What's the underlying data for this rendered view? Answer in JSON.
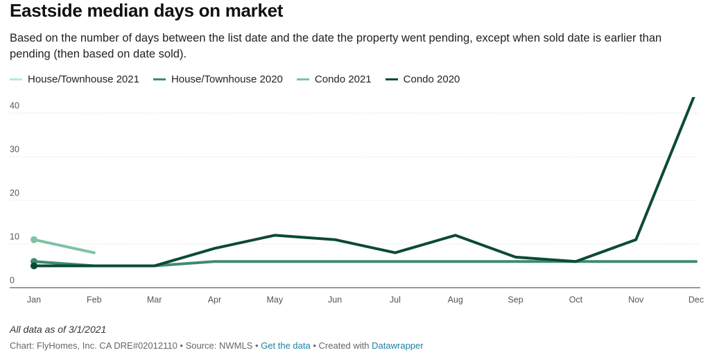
{
  "chart_data": {
    "type": "line",
    "title": "Eastside median days on market",
    "subtitle": "Based on the number of days between the list date and the date the property went pending, except when sold date is earlier than pending (then based on date sold).",
    "categories": [
      "Jan",
      "Feb",
      "Mar",
      "Apr",
      "May",
      "Jun",
      "Jul",
      "Aug",
      "Sep",
      "Oct",
      "Nov",
      "Dec"
    ],
    "series": [
      {
        "name": "House/Townhouse 2021",
        "color": "#b5ecd9",
        "values": [
          5,
          5,
          null,
          null,
          null,
          null,
          null,
          null,
          null,
          null,
          null,
          null
        ]
      },
      {
        "name": "House/Townhouse 2020",
        "color": "#3f8b70",
        "values": [
          6,
          5,
          5,
          6,
          6,
          6,
          6,
          6,
          6,
          6,
          6,
          6
        ]
      },
      {
        "name": "Condo 2021",
        "color": "#7dc3a4",
        "values": [
          11,
          8,
          null,
          null,
          null,
          null,
          null,
          null,
          null,
          null,
          null,
          null
        ]
      },
      {
        "name": "Condo 2020",
        "color": "#0b4a38",
        "values": [
          5,
          5,
          5,
          9,
          12,
          11,
          8,
          12,
          7,
          6,
          11,
          45
        ]
      }
    ],
    "ylim": [
      0,
      45
    ],
    "yticks": [
      0,
      10,
      20,
      30,
      40
    ],
    "grid": true,
    "note": "All data as of 3/1/2021",
    "footer": {
      "credit": "Chart: FlyHomes, Inc. CA DRE#02012110 • Source: NWMLS •",
      "data_link": "Get the data",
      "created": "• Created with",
      "tool_link": "Datawrapper"
    }
  }
}
